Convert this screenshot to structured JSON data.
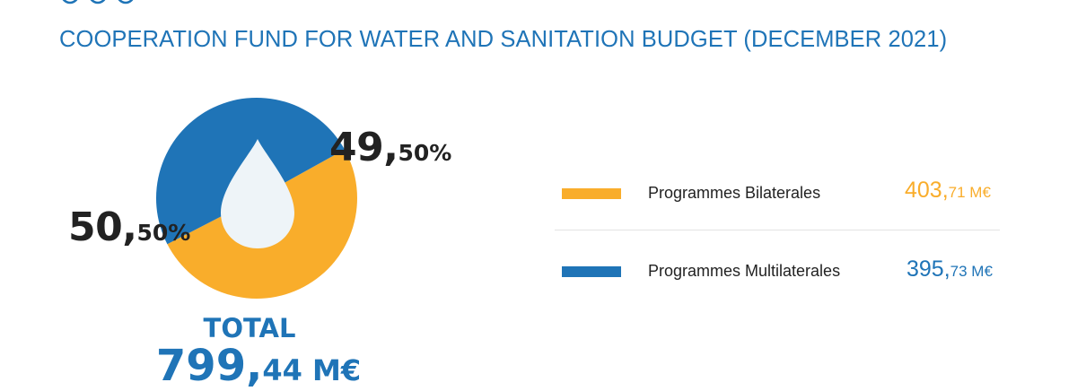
{
  "header": {
    "title": "COOPERATION FUND FOR WATER AND SANITATION BUDGET (DECEMBER 2021)"
  },
  "colors": {
    "primary_blue": "#1f74b7",
    "accent_yellow": "#f9ad2b",
    "drop_fill": "#eef4f8",
    "text_dark": "#222222"
  },
  "icons": [
    "water-drops-icon",
    "water-drop-icon"
  ],
  "chart_data": {
    "type": "pie",
    "categories": [
      "Programmes Bilaterales",
      "Programmes Multilaterales"
    ],
    "values": [
      403.71,
      395.73
    ],
    "percentages": [
      50.5,
      49.5
    ],
    "colors": [
      "#f9ad2b",
      "#1f74b7"
    ],
    "legend_position": "right",
    "labels": {
      "yellow_pct_big": "50,",
      "yellow_pct_small": "50%",
      "blue_pct_big": "49,",
      "blue_pct_small": "50%"
    },
    "total": {
      "label": "TOTAL",
      "value_big": "799,",
      "value_small": "44 M€"
    },
    "legend": [
      {
        "label": "Programmes Bilaterales",
        "amount_big": "403,",
        "amount_small": "71 M€",
        "color": "#f9ad2b"
      },
      {
        "label": "Programmes Multilaterales",
        "amount_big": "395,",
        "amount_small": "73 M€",
        "color": "#1f74b7"
      }
    ]
  }
}
